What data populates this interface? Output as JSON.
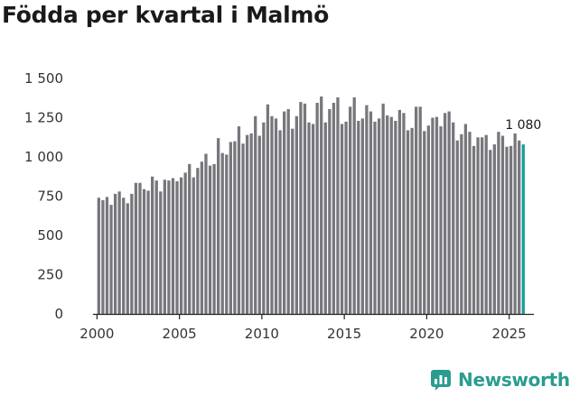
{
  "title": "Födda per kvartal i Malmö",
  "brand": {
    "name": "Newsworthy"
  },
  "colors": {
    "bar": "#76767c",
    "highlight": "#14a195",
    "axis": "#222222",
    "brand": "#2a9d8f"
  },
  "chart_data": {
    "type": "bar",
    "title": "Födda per kvartal i Malmö",
    "xlabel": "",
    "ylabel": "",
    "ylim": [
      0,
      1500
    ],
    "yticks": [
      0,
      250,
      500,
      750,
      1000,
      1250,
      1500
    ],
    "ytick_labels": [
      "0",
      "250",
      "500",
      "750",
      "1 000",
      "1 250",
      "1 500"
    ],
    "xticks": [
      2000,
      2005,
      2010,
      2015,
      2020,
      2025
    ],
    "xtick_labels": [
      "2000",
      "2005",
      "2010",
      "2015",
      "2020",
      "2025"
    ],
    "x_range": [
      1999.75,
      2026.5
    ],
    "grid": false,
    "start_year": 2000,
    "start_quarter": 1,
    "values": [
      740,
      725,
      745,
      695,
      765,
      780,
      740,
      705,
      765,
      835,
      835,
      795,
      785,
      875,
      850,
      780,
      855,
      850,
      865,
      845,
      870,
      900,
      955,
      870,
      930,
      970,
      1020,
      945,
      955,
      1120,
      1025,
      1015,
      1095,
      1100,
      1195,
      1085,
      1140,
      1150,
      1260,
      1135,
      1220,
      1335,
      1260,
      1245,
      1170,
      1290,
      1305,
      1180,
      1260,
      1350,
      1340,
      1220,
      1210,
      1345,
      1385,
      1220,
      1305,
      1345,
      1380,
      1210,
      1225,
      1320,
      1380,
      1230,
      1245,
      1330,
      1290,
      1225,
      1245,
      1340,
      1265,
      1255,
      1230,
      1300,
      1280,
      1170,
      1185,
      1320,
      1320,
      1165,
      1200,
      1250,
      1255,
      1195,
      1280,
      1290,
      1220,
      1105,
      1145,
      1210,
      1160,
      1070,
      1125,
      1125,
      1140,
      1045,
      1080,
      1160,
      1135,
      1065,
      1070,
      1150,
      1105,
      1080
    ],
    "last_value": 1080,
    "last_label": "1 080"
  }
}
